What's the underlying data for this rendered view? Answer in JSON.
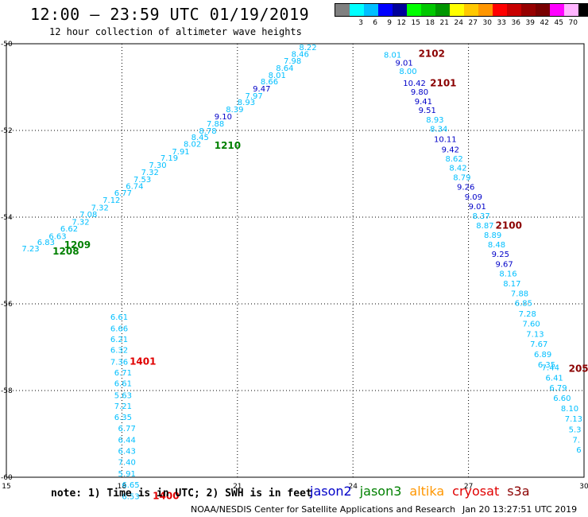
{
  "header": {
    "title": "12:00 – 23:59 UTC 01/19/2019",
    "subtitle": "12 hour collection of altimeter wave heights"
  },
  "legend": {
    "unit": "(ft)",
    "bins": [
      {
        "label": "",
        "color": "#808080"
      },
      {
        "label": "3",
        "color": "#00ffff"
      },
      {
        "label": "6",
        "color": "#00bfff"
      },
      {
        "label": "9",
        "color": "#0000ff"
      },
      {
        "label": "12",
        "color": "#00009a"
      },
      {
        "label": "15",
        "color": "#00ff00"
      },
      {
        "label": "18",
        "color": "#00c800"
      },
      {
        "label": "21",
        "color": "#009600"
      },
      {
        "label": "24",
        "color": "#ffff00"
      },
      {
        "label": "27",
        "color": "#ffc800"
      },
      {
        "label": "30",
        "color": "#ff9600"
      },
      {
        "label": "33",
        "color": "#ff0000"
      },
      {
        "label": "36",
        "color": "#c80000"
      },
      {
        "label": "39",
        "color": "#960000"
      },
      {
        "label": "42",
        "color": "#780000"
      },
      {
        "label": "45",
        "color": "#ff00ff"
      },
      {
        "label": "70",
        "color": "#ffb4ff"
      },
      {
        "label": "",
        "color": "#000000"
      }
    ]
  },
  "axes": {
    "lon_ticks": [
      "15",
      "18",
      "21",
      "24",
      "27",
      "30"
    ],
    "lat_ticks": [
      "-50",
      "-52",
      "-54",
      "-56",
      "-58",
      "-60"
    ],
    "lon_range": [
      15,
      30
    ],
    "lat_range": [
      -50,
      -60
    ]
  },
  "colors": {
    "cyan": "#00bfff",
    "blue": "#0000c8",
    "green": "#008000",
    "darkred": "#8b0000",
    "red": "#e00000"
  },
  "tracks": [
    {
      "id": "jason3",
      "color": "#00bfff",
      "points": [
        {
          "lon": 15.4,
          "lat": -54.79,
          "v": "7.23",
          "c": "cyan"
        },
        {
          "lon": 15.8,
          "lat": -54.64,
          "v": "6.83",
          "c": "cyan"
        },
        {
          "lon": 16.1,
          "lat": -54.5,
          "v": "6.63",
          "c": "cyan"
        },
        {
          "lon": 16.4,
          "lat": -54.33,
          "v": "6.62",
          "c": "cyan"
        },
        {
          "lon": 16.7,
          "lat": -54.17,
          "v": "7.32",
          "c": "cyan"
        },
        {
          "lon": 16.9,
          "lat": -54.0,
          "v": "7.08",
          "c": "cyan"
        },
        {
          "lon": 17.2,
          "lat": -53.84,
          "v": "7.32",
          "c": "cyan"
        },
        {
          "lon": 17.5,
          "lat": -53.67,
          "v": "7.12",
          "c": "cyan"
        },
        {
          "lon": 17.8,
          "lat": -53.5,
          "v": "6.77",
          "c": "cyan"
        },
        {
          "lon": 18.1,
          "lat": -53.35,
          "v": "6.74",
          "c": "cyan"
        },
        {
          "lon": 18.3,
          "lat": -53.19,
          "v": "7.53",
          "c": "cyan"
        },
        {
          "lon": 18.5,
          "lat": -53.03,
          "v": "7.32",
          "c": "cyan"
        },
        {
          "lon": 18.7,
          "lat": -52.86,
          "v": "7.30",
          "c": "cyan"
        },
        {
          "lon": 19.0,
          "lat": -52.7,
          "v": "7.19",
          "c": "cyan"
        },
        {
          "lon": 19.3,
          "lat": -52.55,
          "v": "7.91",
          "c": "cyan"
        },
        {
          "lon": 19.6,
          "lat": -52.38,
          "v": "8.02",
          "c": "cyan"
        },
        {
          "lon": 19.8,
          "lat": -52.22,
          "v": "8.45",
          "c": "cyan"
        },
        {
          "lon": 20.0,
          "lat": -52.07,
          "v": "8.78",
          "c": "cyan"
        },
        {
          "lon": 20.2,
          "lat": -51.91,
          "v": "7.88",
          "c": "cyan"
        },
        {
          "lon": 20.4,
          "lat": -51.74,
          "v": "9.10",
          "c": "blue"
        },
        {
          "lon": 20.7,
          "lat": -51.58,
          "v": "8.39",
          "c": "cyan"
        },
        {
          "lon": 21.0,
          "lat": -51.41,
          "v": "8.93",
          "c": "cyan"
        },
        {
          "lon": 21.2,
          "lat": -51.27,
          "v": "7.97",
          "c": "cyan"
        },
        {
          "lon": 21.4,
          "lat": -51.1,
          "v": "9.47",
          "c": "blue"
        },
        {
          "lon": 21.6,
          "lat": -50.94,
          "v": "8.66",
          "c": "cyan"
        },
        {
          "lon": 21.8,
          "lat": -50.79,
          "v": "8.01",
          "c": "cyan"
        },
        {
          "lon": 22.0,
          "lat": -50.62,
          "v": "8.64",
          "c": "cyan"
        },
        {
          "lon": 22.2,
          "lat": -50.46,
          "v": "7.98",
          "c": "cyan"
        },
        {
          "lon": 22.4,
          "lat": -50.3,
          "v": "8.46",
          "c": "cyan"
        },
        {
          "lon": 22.6,
          "lat": -50.15,
          "v": "8.22",
          "c": "cyan"
        }
      ],
      "labels": [
        {
          "lon": 19.4,
          "lat": -53.5,
          "text": "",
          "c": "green"
        },
        {
          "lon": 16.5,
          "lat": -54.72,
          "text": "1209",
          "c": "green"
        },
        {
          "lon": 16.2,
          "lat": -54.86,
          "text": "1208",
          "c": "green"
        },
        {
          "lon": 20.4,
          "lat": -52.42,
          "text": "1210",
          "c": "green"
        }
      ]
    },
    {
      "id": "cryosat",
      "color": "#00bfff",
      "points": [
        {
          "lon": 24.8,
          "lat": -50.32,
          "v": "8.01",
          "c": "cyan"
        },
        {
          "lon": 25.1,
          "lat": -50.5,
          "v": "9.01",
          "c": "blue"
        },
        {
          "lon": 25.2,
          "lat": -50.7,
          "v": "8.00",
          "c": "cyan"
        },
        {
          "lon": 25.3,
          "lat": -50.97,
          "v": "10.42",
          "c": "blue"
        },
        {
          "lon": 25.5,
          "lat": -51.17,
          "v": "9.80",
          "c": "blue"
        },
        {
          "lon": 25.6,
          "lat": -51.39,
          "v": "9.41",
          "c": "blue"
        },
        {
          "lon": 25.7,
          "lat": -51.6,
          "v": "9.51",
          "c": "blue"
        },
        {
          "lon": 25.9,
          "lat": -51.82,
          "v": "8.93",
          "c": "cyan"
        },
        {
          "lon": 26.0,
          "lat": -52.03,
          "v": "8.34",
          "c": "cyan"
        },
        {
          "lon": 26.1,
          "lat": -52.27,
          "v": "10.11",
          "c": "blue"
        },
        {
          "lon": 26.3,
          "lat": -52.5,
          "v": "9.42",
          "c": "blue"
        },
        {
          "lon": 26.4,
          "lat": -52.72,
          "v": "8.62",
          "c": "cyan"
        },
        {
          "lon": 26.5,
          "lat": -52.93,
          "v": "8.42",
          "c": "cyan"
        },
        {
          "lon": 26.6,
          "lat": -53.15,
          "v": "8.79",
          "c": "cyan"
        },
        {
          "lon": 26.7,
          "lat": -53.37,
          "v": "9.26",
          "c": "blue"
        },
        {
          "lon": 26.9,
          "lat": -53.6,
          "v": "9.09",
          "c": "blue"
        },
        {
          "lon": 27.0,
          "lat": -53.82,
          "v": "9.01",
          "c": "blue"
        },
        {
          "lon": 27.1,
          "lat": -54.04,
          "v": "8.37",
          "c": "cyan"
        },
        {
          "lon": 27.2,
          "lat": -54.26,
          "v": "8.87",
          "c": "cyan"
        },
        {
          "lon": 27.4,
          "lat": -54.48,
          "v": "8.89",
          "c": "cyan"
        },
        {
          "lon": 27.5,
          "lat": -54.7,
          "v": "8.48",
          "c": "cyan"
        },
        {
          "lon": 27.6,
          "lat": -54.92,
          "v": "9.25",
          "c": "blue"
        },
        {
          "lon": 27.7,
          "lat": -55.15,
          "v": "9.67",
          "c": "blue"
        },
        {
          "lon": 27.8,
          "lat": -55.37,
          "v": "8.16",
          "c": "cyan"
        },
        {
          "lon": 27.9,
          "lat": -55.6,
          "v": "8.17",
          "c": "cyan"
        },
        {
          "lon": 28.1,
          "lat": -55.83,
          "v": "7.88",
          "c": "cyan"
        },
        {
          "lon": 28.2,
          "lat": -56.05,
          "v": "6.85",
          "c": "cyan"
        },
        {
          "lon": 28.3,
          "lat": -56.29,
          "v": "7.28",
          "c": "cyan"
        },
        {
          "lon": 28.4,
          "lat": -56.52,
          "v": "7.60",
          "c": "cyan"
        },
        {
          "lon": 28.5,
          "lat": -56.76,
          "v": "7.13",
          "c": "cyan"
        },
        {
          "lon": 28.6,
          "lat": -56.99,
          "v": "7.67",
          "c": "cyan"
        },
        {
          "lon": 28.7,
          "lat": -57.23,
          "v": "6.89",
          "c": "cyan"
        },
        {
          "lon": 28.8,
          "lat": -57.47,
          "v": "6.35",
          "c": "cyan"
        },
        {
          "lon": 28.9,
          "lat": -57.53,
          "v": "7.44",
          "c": "cyan"
        },
        {
          "lon": 29.0,
          "lat": -57.77,
          "v": "6.41",
          "c": "cyan"
        },
        {
          "lon": 29.1,
          "lat": -58.0,
          "v": "6.79",
          "c": "cyan"
        },
        {
          "lon": 29.2,
          "lat": -58.24,
          "v": "6.60",
          "c": "cyan"
        },
        {
          "lon": 29.4,
          "lat": -58.48,
          "v": "8.10",
          "c": "cyan"
        },
        {
          "lon": 29.5,
          "lat": -58.72,
          "v": "7.13",
          "c": "cyan"
        },
        {
          "lon": 29.6,
          "lat": -58.96,
          "v": "5.3",
          "c": "cyan"
        },
        {
          "lon": 29.7,
          "lat": -59.2,
          "v": "7.",
          "c": "cyan"
        },
        {
          "lon": 29.8,
          "lat": -59.43,
          "v": "6",
          "c": "cyan"
        }
      ],
      "labels": [
        {
          "lon": 25.7,
          "lat": -50.3,
          "text": "2102",
          "c": "darkred"
        },
        {
          "lon": 26.0,
          "lat": -50.98,
          "text": "2101",
          "c": "darkred"
        },
        {
          "lon": 27.7,
          "lat": -54.27,
          "text": "2100",
          "c": "darkred"
        },
        {
          "lon": 29.6,
          "lat": -57.57,
          "text": "205",
          "c": "darkred"
        }
      ]
    },
    {
      "id": "altika",
      "color": "#00bfff",
      "points": [
        {
          "lon": 17.7,
          "lat": -56.37,
          "v": "6.61",
          "c": "cyan"
        },
        {
          "lon": 17.7,
          "lat": -56.63,
          "v": "6.66",
          "c": "cyan"
        },
        {
          "lon": 17.7,
          "lat": -56.88,
          "v": "6.21",
          "c": "cyan"
        },
        {
          "lon": 17.7,
          "lat": -57.13,
          "v": "6.32",
          "c": "cyan"
        },
        {
          "lon": 17.7,
          "lat": -57.4,
          "v": "7.36",
          "c": "cyan"
        },
        {
          "lon": 17.8,
          "lat": -57.65,
          "v": "6.71",
          "c": "cyan"
        },
        {
          "lon": 17.8,
          "lat": -57.9,
          "v": "6.61",
          "c": "cyan"
        },
        {
          "lon": 17.8,
          "lat": -58.17,
          "v": "5.63",
          "c": "cyan"
        },
        {
          "lon": 17.8,
          "lat": -58.42,
          "v": "7.21",
          "c": "cyan"
        },
        {
          "lon": 17.8,
          "lat": -58.68,
          "v": "6.35",
          "c": "cyan"
        },
        {
          "lon": 17.9,
          "lat": -58.94,
          "v": "6.77",
          "c": "cyan"
        },
        {
          "lon": 17.9,
          "lat": -59.2,
          "v": "6.44",
          "c": "cyan"
        },
        {
          "lon": 17.9,
          "lat": -59.46,
          "v": "6.43",
          "c": "cyan"
        },
        {
          "lon": 17.9,
          "lat": -59.72,
          "v": "7.40",
          "c": "cyan"
        },
        {
          "lon": 17.9,
          "lat": -59.98,
          "v": "5.91",
          "c": "cyan"
        },
        {
          "lon": 18.0,
          "lat": -60.24,
          "v": "6.65",
          "c": "cyan"
        },
        {
          "lon": 18.0,
          "lat": -60.5,
          "v": "6.53",
          "c": "cyan"
        }
      ],
      "labels": [
        {
          "lon": 18.2,
          "lat": -57.4,
          "text": "1401",
          "c": "red"
        },
        {
          "lon": 18.8,
          "lat": -60.5,
          "text": "1400",
          "c": "red"
        }
      ]
    }
  ],
  "footer": {
    "note": "note: 1) Time is in UTC; 2) SWH is in feet",
    "satellites": [
      {
        "name": "jason2",
        "color": "#0000c8"
      },
      {
        "name": "jason3",
        "color": "#008000"
      },
      {
        "name": "altika",
        "color": "#ff9600"
      },
      {
        "name": "cryosat",
        "color": "#e00000"
      },
      {
        "name": "s3a",
        "color": "#8b0000"
      }
    ],
    "credit": "NOAA/NESDIS Center for Satellite Applications and Research",
    "timestamp": "Jan 20 13:27:51 UTC 2019"
  }
}
